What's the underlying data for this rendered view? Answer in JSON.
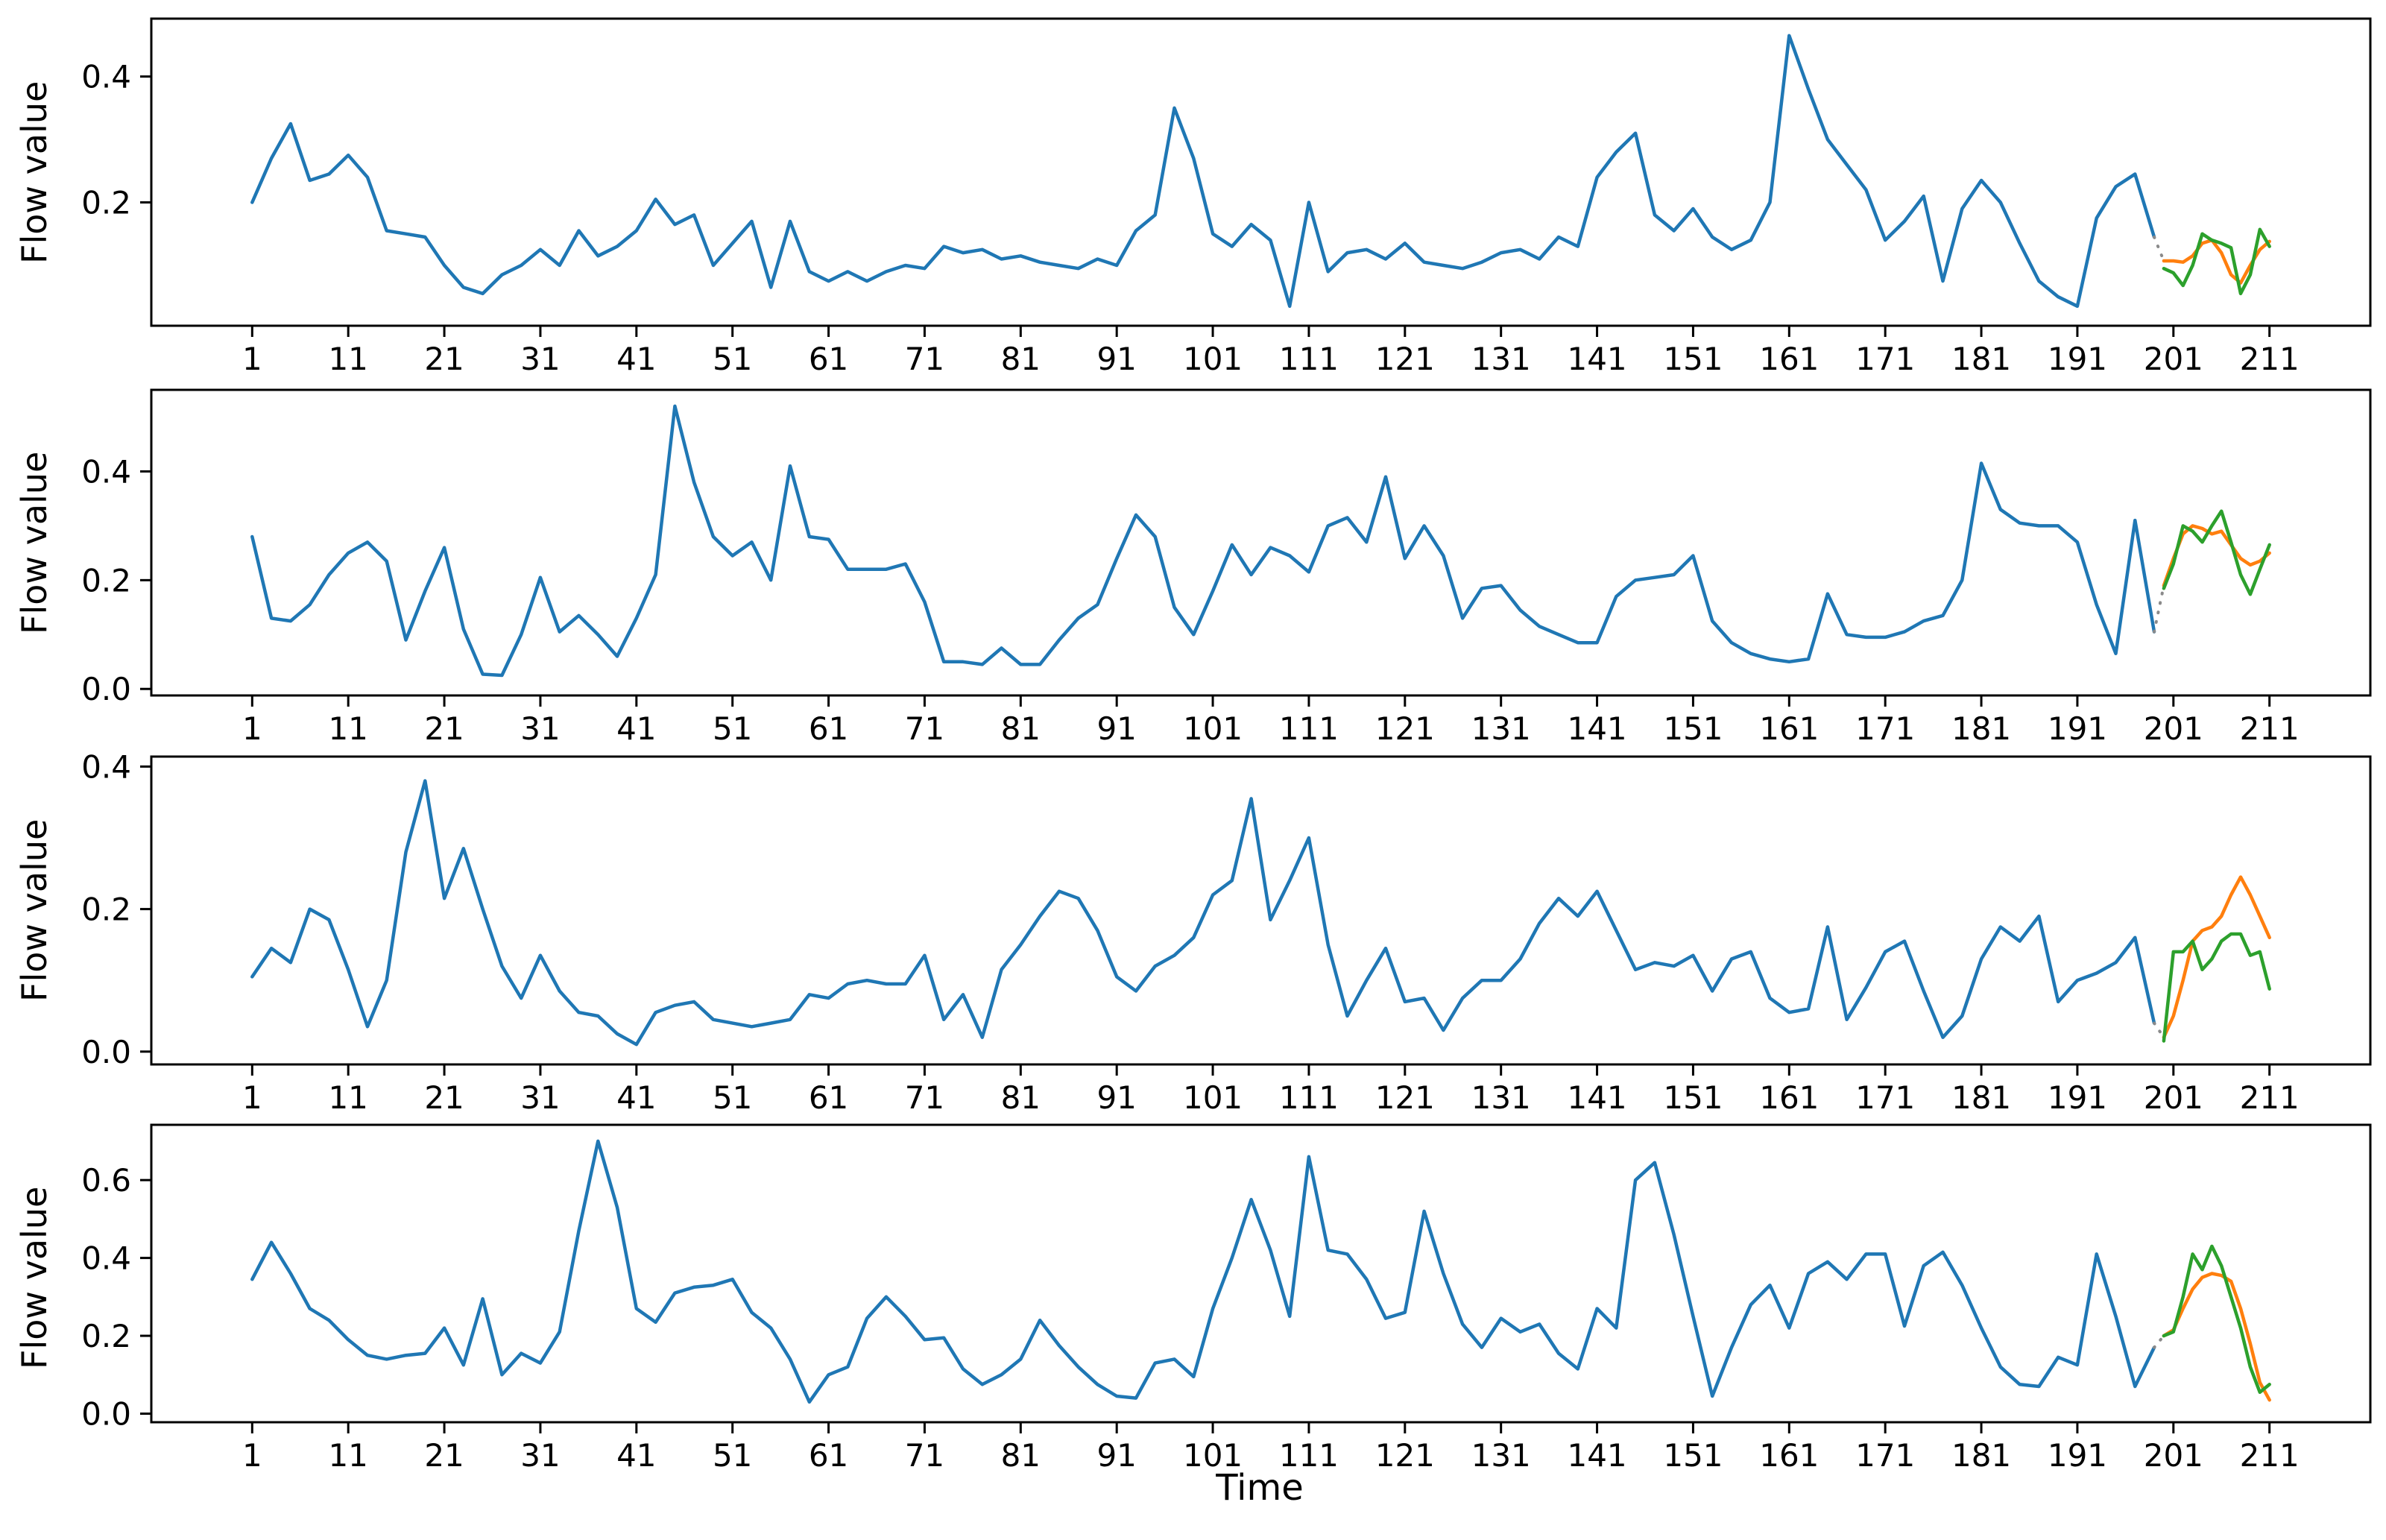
{
  "figure": {
    "xlabel": "Time",
    "ylabel": "Flow value",
    "background": "#ffffff",
    "colors": {
      "history": "#1f77b4",
      "forecast": "#ff7f0e",
      "actual": "#2ca02c",
      "connector": "#8a8a8a",
      "axis": "#000000"
    }
  },
  "chart_data": [
    {
      "type": "line",
      "title": "",
      "xlabel": "",
      "ylabel": "Flow value",
      "xlim": [
        -9.5,
        221.5
      ],
      "ylim": [
        0.004,
        0.492
      ],
      "xticks": [
        1,
        11,
        21,
        31,
        41,
        51,
        61,
        71,
        81,
        91,
        101,
        111,
        121,
        131,
        141,
        151,
        161,
        171,
        181,
        191,
        201,
        211
      ],
      "yticks": [
        0.2,
        0.4
      ],
      "grid": false,
      "legend": null,
      "series": [
        {
          "name": "history",
          "color": "#1f77b4",
          "x0": 1,
          "dx": 2,
          "values": [
            0.2,
            0.27,
            0.325,
            0.235,
            0.245,
            0.275,
            0.24,
            0.155,
            0.15,
            0.145,
            0.1,
            0.065,
            0.055,
            0.085,
            0.1,
            0.125,
            0.1,
            0.155,
            0.115,
            0.13,
            0.155,
            0.205,
            0.165,
            0.18,
            0.1,
            0.135,
            0.17,
            0.065,
            0.17,
            0.09,
            0.075,
            0.09,
            0.075,
            0.09,
            0.1,
            0.095,
            0.13,
            0.12,
            0.125,
            0.11,
            0.115,
            0.105,
            0.1,
            0.095,
            0.11,
            0.1,
            0.155,
            0.18,
            0.35,
            0.27,
            0.15,
            0.13,
            0.165,
            0.14,
            0.035,
            0.2,
            0.09,
            0.12,
            0.125,
            0.11,
            0.135,
            0.105,
            0.1,
            0.095,
            0.105,
            0.12,
            0.125,
            0.11,
            0.145,
            0.13,
            0.24,
            0.28,
            0.31,
            0.18,
            0.155,
            0.19,
            0.145,
            0.125,
            0.14,
            0.2,
            0.465,
            0.38,
            0.3,
            0.26,
            0.22,
            0.14,
            0.17,
            0.21,
            0.075,
            0.19,
            0.235,
            0.2,
            0.135,
            0.075,
            0.05,
            0.035,
            0.175,
            0.225,
            0.245,
            0.145
          ]
        },
        {
          "name": "connector",
          "color": "#8a8a8a",
          "style": "dotted",
          "x0": 199,
          "dx": 1,
          "values": [
            0.145,
            0.107
          ]
        },
        {
          "name": "forecast",
          "color": "#ff7f0e",
          "x0": 200,
          "dx": 1,
          "values": [
            0.107,
            0.107,
            0.105,
            0.115,
            0.135,
            0.14,
            0.12,
            0.085,
            0.072,
            0.1,
            0.125,
            0.138
          ]
        },
        {
          "name": "actual",
          "color": "#2ca02c",
          "x0": 200,
          "dx": 1,
          "values": [
            0.095,
            0.088,
            0.068,
            0.1,
            0.15,
            0.14,
            0.135,
            0.128,
            0.055,
            0.085,
            0.157,
            0.13
          ]
        }
      ]
    },
    {
      "type": "line",
      "title": "",
      "xlabel": "",
      "ylabel": "Flow value",
      "xlim": [
        -9.5,
        221.5
      ],
      "ylim": [
        -0.012,
        0.55
      ],
      "xticks": [
        1,
        11,
        21,
        31,
        41,
        51,
        61,
        71,
        81,
        91,
        101,
        111,
        121,
        131,
        141,
        151,
        161,
        171,
        181,
        191,
        201,
        211
      ],
      "yticks": [
        0.0,
        0.2,
        0.4
      ],
      "grid": false,
      "legend": null,
      "series": [
        {
          "name": "history",
          "color": "#1f77b4",
          "x0": 1,
          "dx": 2,
          "values": [
            0.28,
            0.13,
            0.125,
            0.155,
            0.21,
            0.25,
            0.27,
            0.235,
            0.09,
            0.18,
            0.26,
            0.11,
            0.027,
            0.025,
            0.1,
            0.205,
            0.105,
            0.135,
            0.1,
            0.06,
            0.13,
            0.21,
            0.52,
            0.38,
            0.28,
            0.245,
            0.27,
            0.2,
            0.41,
            0.28,
            0.275,
            0.22,
            0.22,
            0.22,
            0.23,
            0.16,
            0.05,
            0.05,
            0.045,
            0.075,
            0.045,
            0.045,
            0.09,
            0.13,
            0.155,
            0.24,
            0.32,
            0.28,
            0.15,
            0.1,
            0.18,
            0.265,
            0.21,
            0.26,
            0.245,
            0.215,
            0.3,
            0.315,
            0.27,
            0.39,
            0.24,
            0.3,
            0.245,
            0.13,
            0.185,
            0.19,
            0.145,
            0.115,
            0.1,
            0.085,
            0.085,
            0.17,
            0.2,
            0.205,
            0.21,
            0.245,
            0.125,
            0.085,
            0.065,
            0.055,
            0.05,
            0.055,
            0.175,
            0.1,
            0.095,
            0.095,
            0.105,
            0.125,
            0.135,
            0.2,
            0.415,
            0.33,
            0.305,
            0.3,
            0.3,
            0.27,
            0.155,
            0.065,
            0.31,
            0.105
          ]
        },
        {
          "name": "connector",
          "color": "#8a8a8a",
          "style": "dotted",
          "x0": 199,
          "dx": 1,
          "values": [
            0.105,
            0.19
          ]
        },
        {
          "name": "forecast",
          "color": "#ff7f0e",
          "x0": 200,
          "dx": 1,
          "values": [
            0.19,
            0.24,
            0.285,
            0.3,
            0.295,
            0.285,
            0.29,
            0.265,
            0.24,
            0.228,
            0.235,
            0.25
          ]
        },
        {
          "name": "actual",
          "color": "#2ca02c",
          "x0": 200,
          "dx": 1,
          "values": [
            0.185,
            0.23,
            0.3,
            0.29,
            0.27,
            0.3,
            0.327,
            0.27,
            0.21,
            0.174,
            0.22,
            0.265
          ]
        }
      ]
    },
    {
      "type": "line",
      "title": "",
      "xlabel": "",
      "ylabel": "Flow value",
      "xlim": [
        -9.5,
        221.5
      ],
      "ylim": [
        -0.018,
        0.414
      ],
      "xticks": [
        1,
        11,
        21,
        31,
        41,
        51,
        61,
        71,
        81,
        91,
        101,
        111,
        121,
        131,
        141,
        151,
        161,
        171,
        181,
        191,
        201,
        211
      ],
      "yticks": [
        0.0,
        0.2,
        0.4
      ],
      "grid": false,
      "legend": null,
      "series": [
        {
          "name": "history",
          "color": "#1f77b4",
          "x0": 1,
          "dx": 2,
          "values": [
            0.105,
            0.145,
            0.125,
            0.2,
            0.185,
            0.115,
            0.035,
            0.1,
            0.28,
            0.38,
            0.215,
            0.285,
            0.2,
            0.12,
            0.075,
            0.135,
            0.085,
            0.055,
            0.05,
            0.025,
            0.01,
            0.055,
            0.065,
            0.07,
            0.045,
            0.04,
            0.035,
            0.04,
            0.045,
            0.08,
            0.075,
            0.095,
            0.1,
            0.095,
            0.095,
            0.135,
            0.045,
            0.08,
            0.02,
            0.115,
            0.15,
            0.19,
            0.225,
            0.215,
            0.17,
            0.105,
            0.085,
            0.12,
            0.135,
            0.16,
            0.22,
            0.24,
            0.355,
            0.185,
            0.24,
            0.3,
            0.15,
            0.05,
            0.1,
            0.145,
            0.07,
            0.075,
            0.03,
            0.075,
            0.1,
            0.1,
            0.13,
            0.18,
            0.215,
            0.19,
            0.225,
            0.17,
            0.115,
            0.125,
            0.12,
            0.135,
            0.085,
            0.13,
            0.14,
            0.075,
            0.055,
            0.06,
            0.175,
            0.045,
            0.09,
            0.14,
            0.155,
            0.085,
            0.02,
            0.05,
            0.13,
            0.175,
            0.155,
            0.19,
            0.07,
            0.1,
            0.11,
            0.125,
            0.16,
            0.04
          ]
        },
        {
          "name": "connector",
          "color": "#8a8a8a",
          "style": "dotted",
          "x0": 199,
          "dx": 1,
          "values": [
            0.04,
            0.02
          ]
        },
        {
          "name": "forecast",
          "color": "#ff7f0e",
          "x0": 200,
          "dx": 1,
          "values": [
            0.02,
            0.05,
            0.1,
            0.155,
            0.17,
            0.175,
            0.19,
            0.22,
            0.245,
            0.22,
            0.19,
            0.16
          ]
        },
        {
          "name": "actual",
          "color": "#2ca02c",
          "x0": 200,
          "dx": 1,
          "values": [
            0.015,
            0.14,
            0.14,
            0.155,
            0.115,
            0.13,
            0.155,
            0.165,
            0.165,
            0.135,
            0.14,
            0.088
          ]
        }
      ]
    },
    {
      "type": "line",
      "title": "",
      "xlabel": "Time",
      "ylabel": "Flow value",
      "xlim": [
        -9.5,
        221.5
      ],
      "ylim": [
        -0.022,
        0.742
      ],
      "xticks": [
        1,
        11,
        21,
        31,
        41,
        51,
        61,
        71,
        81,
        91,
        101,
        111,
        121,
        131,
        141,
        151,
        161,
        171,
        181,
        191,
        201,
        211
      ],
      "yticks": [
        0.0,
        0.2,
        0.4,
        0.6
      ],
      "grid": false,
      "legend": null,
      "series": [
        {
          "name": "history",
          "color": "#1f77b4",
          "x0": 1,
          "dx": 2,
          "values": [
            0.345,
            0.44,
            0.36,
            0.27,
            0.24,
            0.19,
            0.15,
            0.14,
            0.15,
            0.155,
            0.22,
            0.125,
            0.295,
            0.1,
            0.155,
            0.13,
            0.21,
            0.47,
            0.7,
            0.53,
            0.27,
            0.235,
            0.31,
            0.325,
            0.33,
            0.345,
            0.26,
            0.22,
            0.14,
            0.03,
            0.1,
            0.12,
            0.245,
            0.3,
            0.25,
            0.19,
            0.195,
            0.115,
            0.075,
            0.1,
            0.14,
            0.24,
            0.175,
            0.12,
            0.075,
            0.045,
            0.04,
            0.13,
            0.14,
            0.095,
            0.27,
            0.4,
            0.55,
            0.42,
            0.25,
            0.66,
            0.42,
            0.41,
            0.345,
            0.245,
            0.26,
            0.52,
            0.36,
            0.23,
            0.17,
            0.245,
            0.21,
            0.23,
            0.155,
            0.115,
            0.27,
            0.22,
            0.6,
            0.645,
            0.46,
            0.25,
            0.045,
            0.17,
            0.28,
            0.33,
            0.22,
            0.36,
            0.39,
            0.345,
            0.41,
            0.41,
            0.225,
            0.38,
            0.415,
            0.33,
            0.22,
            0.12,
            0.075,
            0.07,
            0.145,
            0.125,
            0.41,
            0.25,
            0.07,
            0.17
          ]
        },
        {
          "name": "connector",
          "color": "#8a8a8a",
          "style": "dotted",
          "x0": 199,
          "dx": 1,
          "values": [
            0.17,
            0.2
          ]
        },
        {
          "name": "forecast",
          "color": "#ff7f0e",
          "x0": 200,
          "dx": 1,
          "values": [
            0.2,
            0.215,
            0.27,
            0.32,
            0.35,
            0.36,
            0.355,
            0.34,
            0.27,
            0.18,
            0.08,
            0.035
          ]
        },
        {
          "name": "actual",
          "color": "#2ca02c",
          "x0": 200,
          "dx": 1,
          "values": [
            0.2,
            0.21,
            0.3,
            0.41,
            0.37,
            0.43,
            0.38,
            0.3,
            0.22,
            0.12,
            0.055,
            0.075
          ]
        }
      ]
    }
  ]
}
